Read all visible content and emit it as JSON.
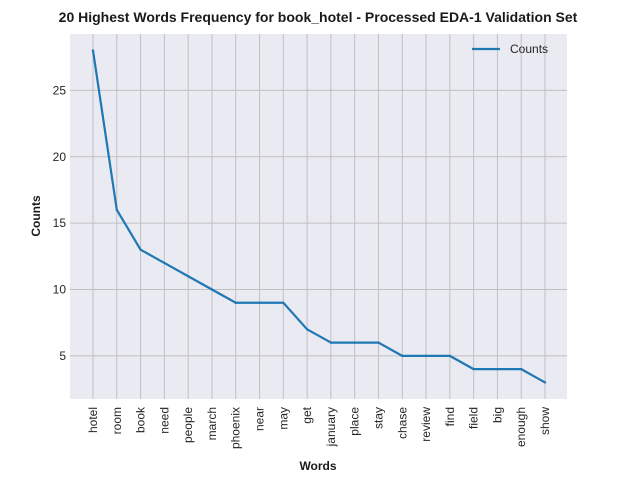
{
  "chart_data": {
    "type": "line",
    "title": "20 Highest Words Frequency for book_hotel - Processed EDA-1 Validation Set",
    "xlabel": "Words",
    "ylabel": "Counts",
    "categories": [
      "hotel",
      "room",
      "book",
      "need",
      "people",
      "march",
      "phoenix",
      "near",
      "may",
      "get",
      "january",
      "place",
      "stay",
      "chase",
      "review",
      "find",
      "field",
      "big",
      "enough",
      "show"
    ],
    "series": [
      {
        "name": "Counts",
        "values": [
          28,
          16,
          13,
          12,
          11,
          10,
          9,
          9,
          9,
          7,
          6,
          6,
          6,
          5,
          5,
          5,
          4,
          4,
          4,
          3
        ]
      }
    ],
    "ylim": [
      1.75,
      29.25
    ],
    "yticks": [
      5,
      10,
      15,
      20,
      25
    ],
    "grid": true,
    "legend": "top-right",
    "colors": {
      "line": "#1f77b4",
      "background": "#eaeaf2",
      "grid": "#c0c0c0"
    }
  }
}
